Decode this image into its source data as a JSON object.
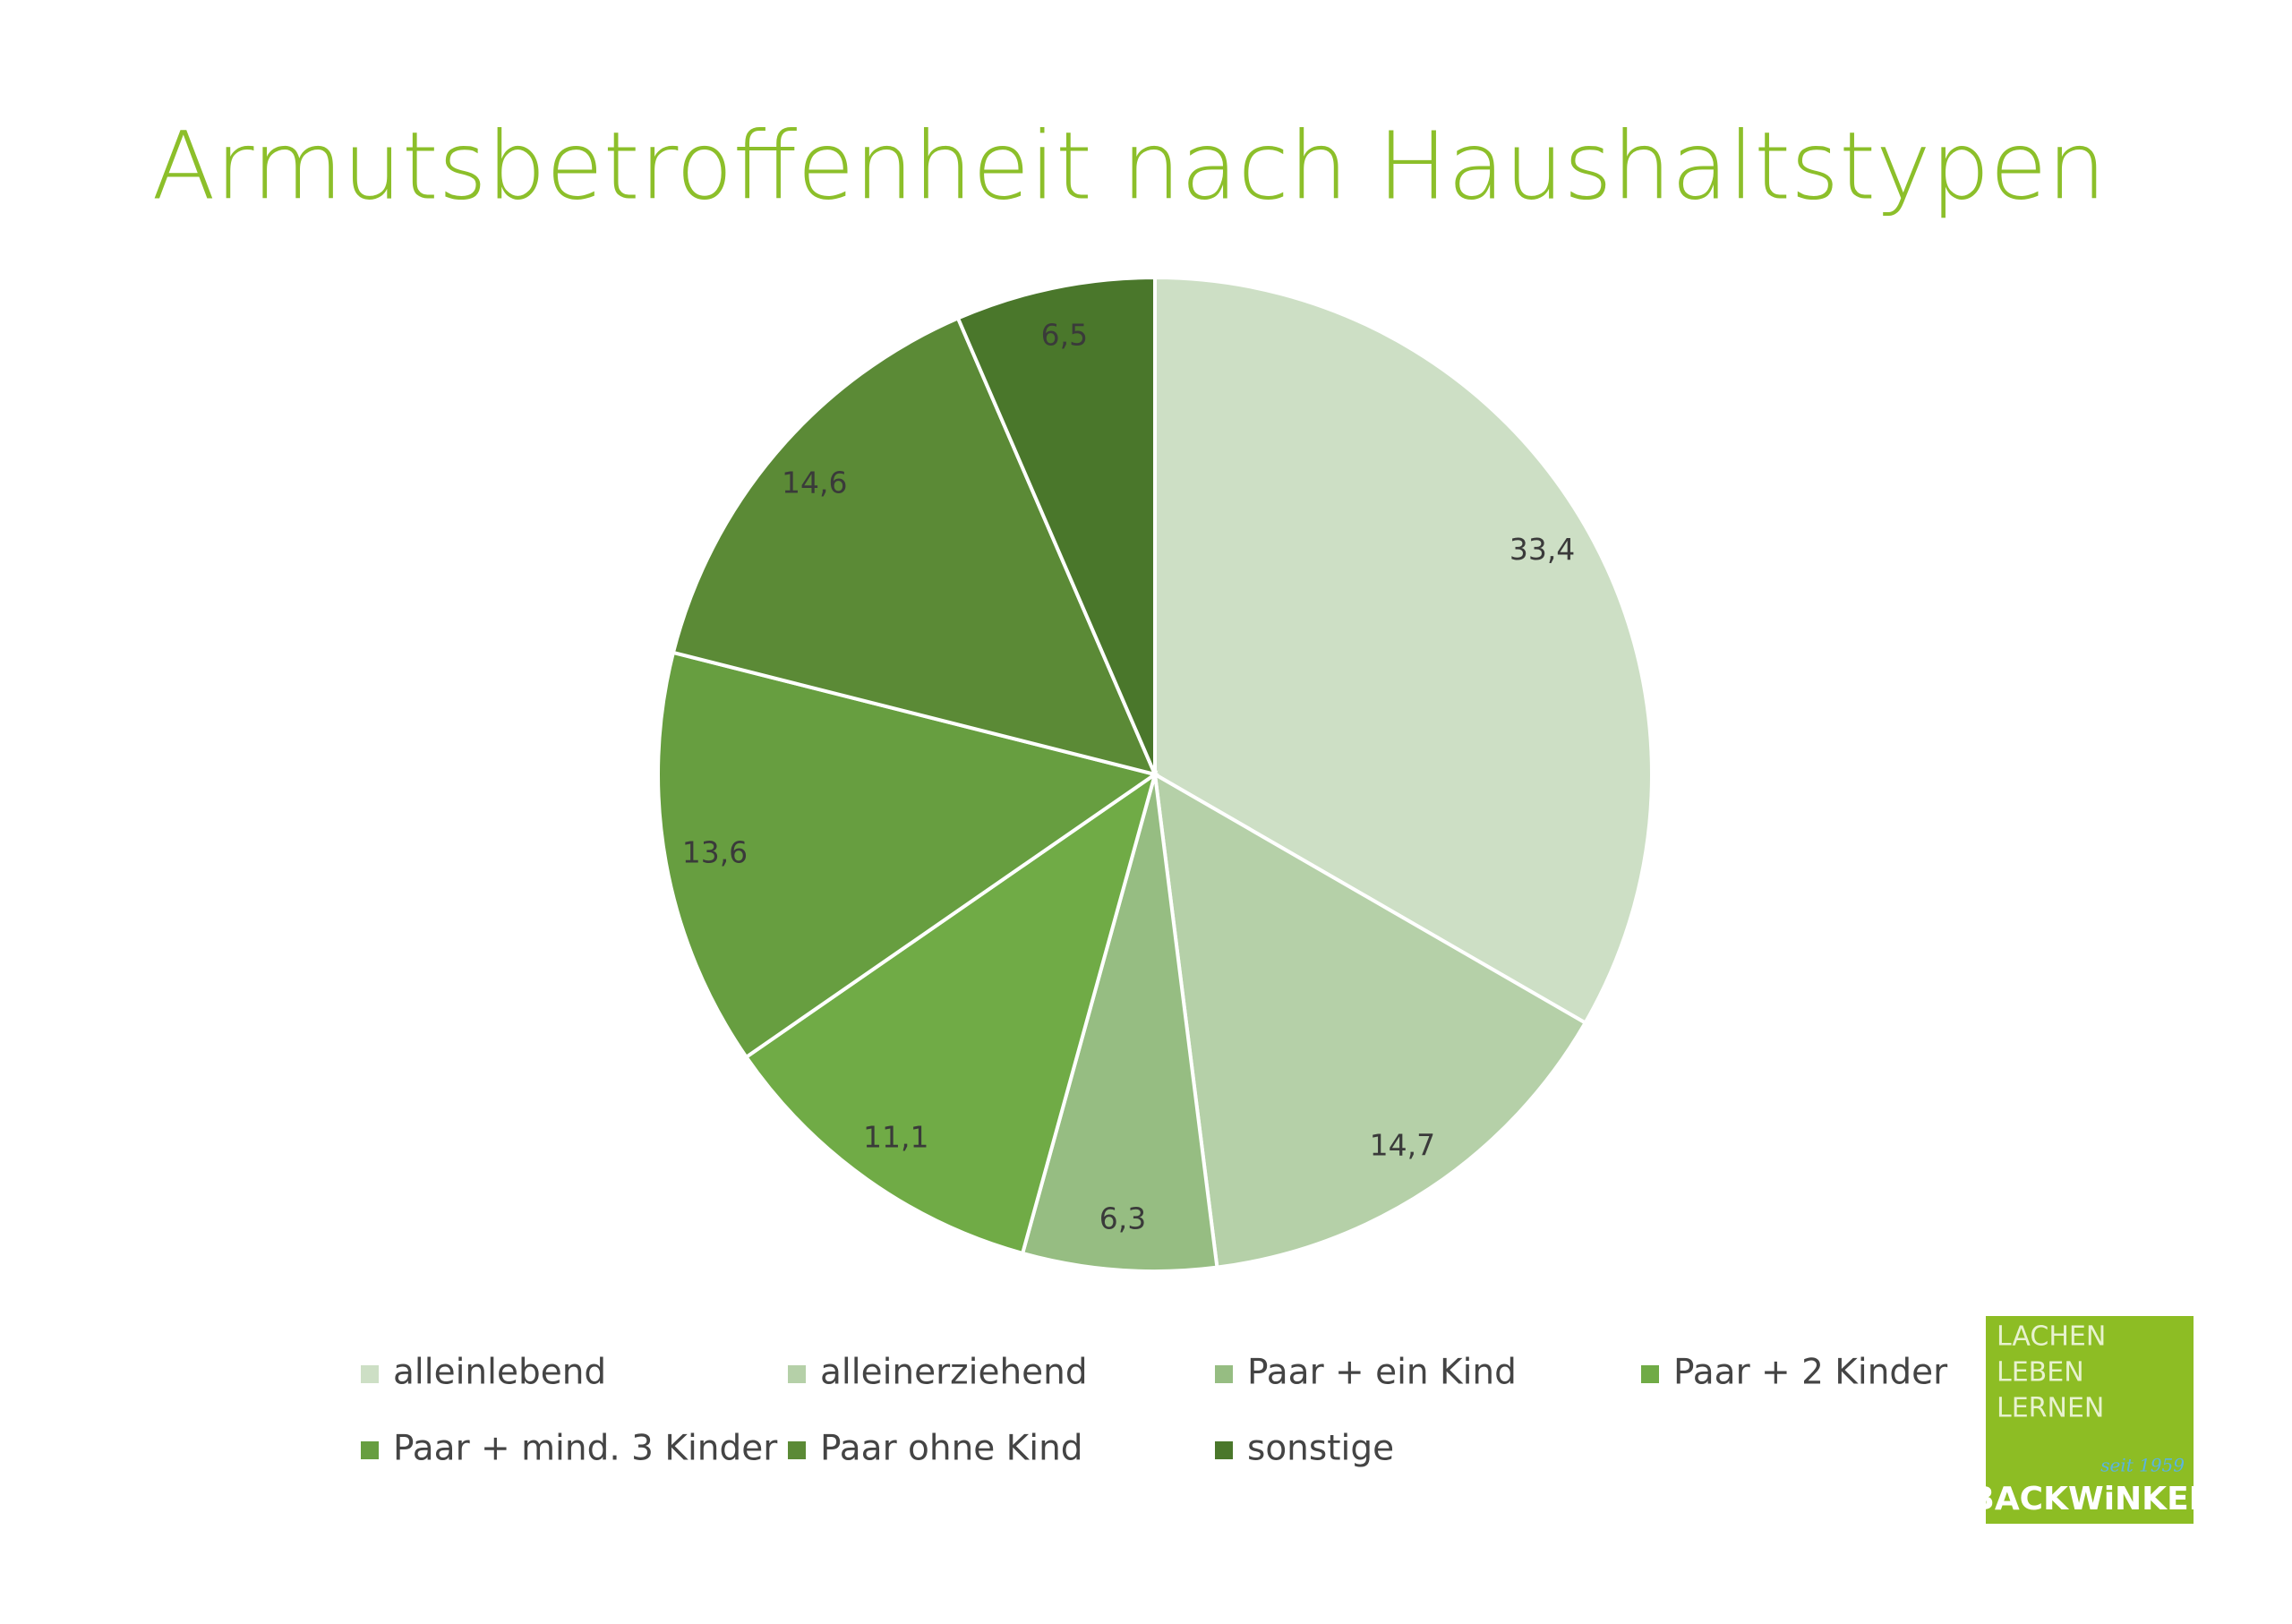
{
  "chart_data": {
    "type": "pie",
    "title": "Armutsbetroffenheit nach Haushaltstypen",
    "categories": [
      "alleinlebend",
      "alleinerziehend",
      "Paar + ein Kind",
      "Paar + 2 Kinder",
      "Paar + mind. 3 Kinder",
      "Paar ohne Kind",
      "sonstige"
    ],
    "values": [
      33.4,
      14.7,
      6.3,
      11.1,
      13.6,
      14.6,
      6.5
    ],
    "value_labels": [
      "33,4",
      "14,7",
      "6,3",
      "11,1",
      "13,6",
      "14,6",
      "6,5"
    ],
    "colors": [
      "#cddfc5",
      "#b5d0a8",
      "#96bd82",
      "#70ab46",
      "#679e40",
      "#5b8a36",
      "#4a772b"
    ],
    "legend": "bottom"
  },
  "logo": {
    "lines": [
      "LACHEN",
      "LEBEN",
      "LERNEN"
    ],
    "since": "seit 1959",
    "brand": "BACKWiNKEL"
  }
}
